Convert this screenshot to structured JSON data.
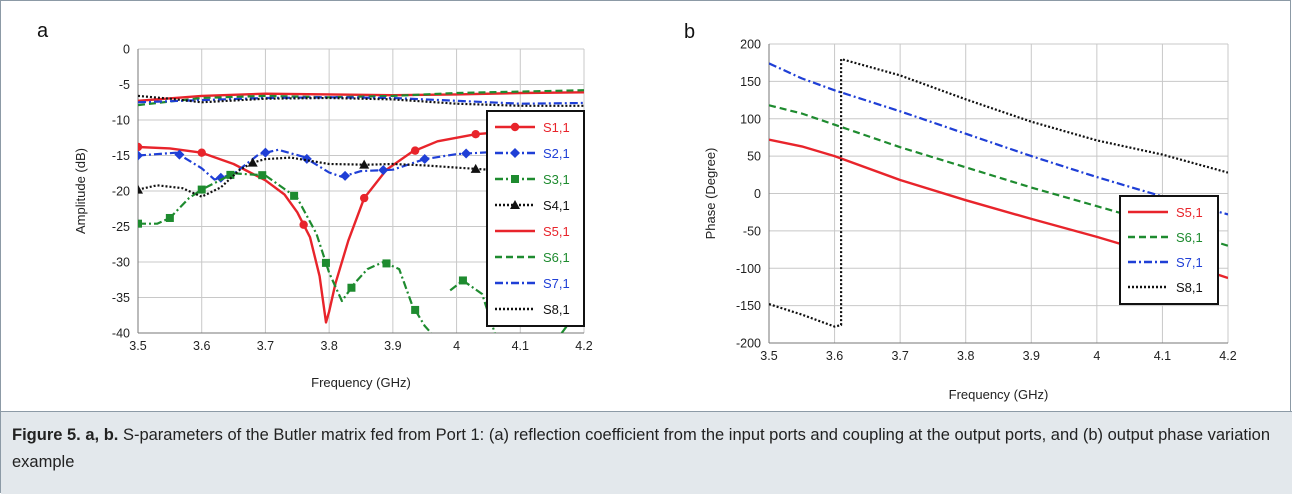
{
  "caption": {
    "label": "Figure 5. a, b.",
    "text": " S-parameters of the Butler matrix fed from Port 1: (a) reflection coefficient from the input ports and coupling at the output ports, and (b) output phase variation example"
  },
  "chart_data": [
    {
      "panel_label": "a",
      "type": "line",
      "xlabel": "Frequency (GHz)",
      "ylabel": "Amplitude (dB)",
      "xlim": [
        3.5,
        4.2
      ],
      "ylim": [
        -40,
        0
      ],
      "xticks": [
        "3.5",
        "3.6",
        "3.7",
        "3.8",
        "3.9",
        "4",
        "4.1",
        "4.2"
      ],
      "xtick_values": [
        3.5,
        3.6,
        3.7,
        3.8,
        3.9,
        4.0,
        4.1,
        4.2
      ],
      "yticks": [
        "0",
        "-5",
        "-10",
        "-15",
        "-20",
        "-25",
        "-30",
        "-35",
        "-40"
      ],
      "ytick_values": [
        0,
        -5,
        -10,
        -15,
        -20,
        -25,
        -30,
        -35,
        -40
      ],
      "grid": true,
      "legend_position": "right",
      "series": [
        {
          "name": "S1,1",
          "color": "#e8242b",
          "dash": "solid",
          "marker": "circle",
          "points": [
            [
              3.5,
              -13.8
            ],
            [
              3.55,
              -14
            ],
            [
              3.6,
              -14.6
            ],
            [
              3.65,
              -16.2
            ],
            [
              3.7,
              -18.5
            ],
            [
              3.73,
              -20.5
            ],
            [
              3.75,
              -23
            ],
            [
              3.77,
              -26.5
            ],
            [
              3.785,
              -32
            ],
            [
              3.795,
              -38.5
            ],
            [
              3.8,
              -37
            ],
            [
              3.81,
              -33
            ],
            [
              3.83,
              -27
            ],
            [
              3.855,
              -21
            ],
            [
              3.89,
              -17
            ],
            [
              3.93,
              -14.5
            ],
            [
              3.97,
              -13
            ],
            [
              4.03,
              -12
            ],
            [
              4.1,
              -11.5
            ],
            [
              4.2,
              -11
            ]
          ],
          "marker_x": [
            3.5,
            3.6,
            3.76,
            3.855,
            3.935,
            4.03
          ]
        },
        {
          "name": "S2,1",
          "color": "#1f3fd6",
          "dash": "8,3,2,3",
          "marker": "diamond",
          "points": [
            [
              3.5,
              -15
            ],
            [
              3.56,
              -14.6
            ],
            [
              3.6,
              -16.8
            ],
            [
              3.62,
              -18.4
            ],
            [
              3.65,
              -17.6
            ],
            [
              3.69,
              -14.8
            ],
            [
              3.72,
              -14.2
            ],
            [
              3.76,
              -15.2
            ],
            [
              3.8,
              -17.4
            ],
            [
              3.82,
              -18
            ],
            [
              3.85,
              -17.2
            ],
            [
              3.9,
              -17
            ],
            [
              3.95,
              -15.5
            ],
            [
              4,
              -14.8
            ],
            [
              4.06,
              -14.5
            ],
            [
              4.1,
              -14
            ],
            [
              4.2,
              -12.8
            ]
          ],
          "marker_x": [
            3.5,
            3.565,
            3.63,
            3.7,
            3.765,
            3.825,
            3.885,
            3.95,
            4.015
          ]
        },
        {
          "name": "S3,1",
          "color": "#1e8b2f",
          "dash": "8,3,2,3",
          "marker": "square",
          "points": [
            [
              3.5,
              -24.6
            ],
            [
              3.53,
              -24.6
            ],
            [
              3.55,
              -23.8
            ],
            [
              3.58,
              -21
            ],
            [
              3.6,
              -19.8
            ],
            [
              3.65,
              -17.5
            ],
            [
              3.7,
              -17.8
            ],
            [
              3.75,
              -21
            ],
            [
              3.78,
              -26
            ],
            [
              3.8,
              -31.5
            ],
            [
              3.82,
              -35.5
            ],
            [
              3.84,
              -33
            ],
            [
              3.86,
              -31
            ],
            [
              3.885,
              -30
            ],
            [
              3.91,
              -31
            ],
            [
              3.93,
              -36
            ],
            [
              3.95,
              -39
            ],
            [
              3.96,
              -40
            ]
          ],
          "extra_points": [
            [
              3.99,
              -34
            ],
            [
              4.01,
              -32.6
            ],
            [
              4.04,
              -34.5
            ],
            [
              4.06,
              -40
            ]
          ],
          "extra2_points": [
            [
              4.165,
              -40
            ],
            [
              4.19,
              -37
            ],
            [
              4.2,
              -37.5
            ]
          ],
          "marker_x": [
            3.5,
            3.55,
            3.6,
            3.645,
            3.695,
            3.745,
            3.795,
            3.835,
            3.89,
            3.935,
            4.01,
            4.195
          ]
        },
        {
          "name": "S4,1",
          "color": "#111111",
          "dash": "2,2",
          "marker": "triangle",
          "points": [
            [
              3.5,
              -19.8
            ],
            [
              3.53,
              -19.2
            ],
            [
              3.57,
              -19.6
            ],
            [
              3.6,
              -20.8
            ],
            [
              3.63,
              -19.5
            ],
            [
              3.66,
              -17
            ],
            [
              3.68,
              -16
            ],
            [
              3.7,
              -15.5
            ],
            [
              3.74,
              -15.3
            ],
            [
              3.8,
              -16.2
            ],
            [
              3.86,
              -16.3
            ],
            [
              3.9,
              -16.2
            ],
            [
              3.95,
              -16.4
            ],
            [
              4,
              -16.7
            ],
            [
              4.05,
              -17
            ],
            [
              4.1,
              -17.6
            ],
            [
              4.2,
              -18
            ]
          ],
          "marker_x": [
            3.5,
            3.68,
            3.855,
            4.03
          ]
        },
        {
          "name": "S5,1",
          "color": "#e8242b",
          "dash": "solid",
          "marker": "none",
          "points": [
            [
              3.5,
              -7.3
            ],
            [
              3.6,
              -6.6
            ],
            [
              3.7,
              -6.3
            ],
            [
              3.8,
              -6.4
            ],
            [
              3.9,
              -6.5
            ],
            [
              4,
              -6.4
            ],
            [
              4.1,
              -6.2
            ],
            [
              4.2,
              -6.1
            ]
          ]
        },
        {
          "name": "S6,1",
          "color": "#1e8b2f",
          "dash": "7,4",
          "marker": "none",
          "points": [
            [
              3.5,
              -7.9
            ],
            [
              3.6,
              -6.9
            ],
            [
              3.7,
              -6.6
            ],
            [
              3.8,
              -6.8
            ],
            [
              3.9,
              -6.6
            ],
            [
              4,
              -6.2
            ],
            [
              4.1,
              -6.0
            ],
            [
              4.2,
              -5.8
            ]
          ]
        },
        {
          "name": "S7,1",
          "color": "#1f3fd6",
          "dash": "8,3,2,3",
          "marker": "none",
          "points": [
            [
              3.5,
              -7.5
            ],
            [
              3.6,
              -7.2
            ],
            [
              3.7,
              -6.9
            ],
            [
              3.8,
              -6.8
            ],
            [
              3.9,
              -6.9
            ],
            [
              4,
              -7.3
            ],
            [
              4.1,
              -7.7
            ],
            [
              4.2,
              -7.6
            ]
          ]
        },
        {
          "name": "S8,1",
          "color": "#111111",
          "dash": "2,2",
          "marker": "none",
          "points": [
            [
              3.5,
              -6.6
            ],
            [
              3.55,
              -7.0
            ],
            [
              3.6,
              -7.5
            ],
            [
              3.7,
              -7.0
            ],
            [
              3.8,
              -6.9
            ],
            [
              3.9,
              -7.1
            ],
            [
              4,
              -7.7
            ],
            [
              4.1,
              -8.0
            ],
            [
              4.2,
              -8.0
            ]
          ]
        }
      ]
    },
    {
      "panel_label": "b",
      "type": "line",
      "xlabel": "Frequency (GHz)",
      "ylabel": "Phase (Degree)",
      "xlim": [
        3.5,
        4.2
      ],
      "ylim": [
        -200,
        200
      ],
      "xticks": [
        "3.5",
        "3.6",
        "3.7",
        "3.8",
        "3.9",
        "4",
        "4.1",
        "4.2"
      ],
      "xtick_values": [
        3.5,
        3.6,
        3.7,
        3.8,
        3.9,
        4.0,
        4.1,
        4.2
      ],
      "yticks": [
        "200",
        "150",
        "100",
        "50",
        "0",
        "-50",
        "-100",
        "-150",
        "-200"
      ],
      "ytick_values": [
        200,
        150,
        100,
        50,
        0,
        -50,
        -100,
        -150,
        -200
      ],
      "grid": true,
      "legend_position": "center-right",
      "series": [
        {
          "name": "S5,1",
          "color": "#e8242b",
          "dash": "solid",
          "points": [
            [
              3.5,
              72
            ],
            [
              3.55,
              63
            ],
            [
              3.6,
              50
            ],
            [
              3.7,
              18
            ],
            [
              3.8,
              -9
            ],
            [
              3.9,
              -34
            ],
            [
              4,
              -58
            ],
            [
              4.1,
              -84
            ],
            [
              4.2,
              -113
            ]
          ]
        },
        {
          "name": "S6,1",
          "color": "#1e8b2f",
          "dash": "7,4",
          "points": [
            [
              3.5,
              118
            ],
            [
              3.55,
              107
            ],
            [
              3.6,
              92
            ],
            [
              3.7,
              62
            ],
            [
              3.8,
              35
            ],
            [
              3.9,
              8
            ],
            [
              4,
              -17
            ],
            [
              4.1,
              -42
            ],
            [
              4.2,
              -70
            ]
          ]
        },
        {
          "name": "S7,1",
          "color": "#1f3fd6",
          "dash": "8,3,2,3",
          "points": [
            [
              3.5,
              174
            ],
            [
              3.55,
              154
            ],
            [
              3.6,
              138
            ],
            [
              3.7,
              110
            ],
            [
              3.8,
              80
            ],
            [
              3.9,
              50
            ],
            [
              4,
              22
            ],
            [
              4.1,
              -4
            ],
            [
              4.2,
              -28
            ]
          ]
        },
        {
          "name": "S8,1",
          "color": "#111111",
          "dash": "2,2",
          "points": [
            [
              3.5,
              -148
            ],
            [
              3.55,
              -162
            ],
            [
              3.6,
              -178
            ],
            [
              3.61,
              -176
            ],
            [
              3.61,
              180
            ],
            [
              3.7,
              158
            ],
            [
              3.8,
              126
            ],
            [
              3.9,
              96
            ],
            [
              4,
              71
            ],
            [
              4.1,
              52
            ],
            [
              4.2,
              28
            ]
          ]
        }
      ]
    }
  ]
}
